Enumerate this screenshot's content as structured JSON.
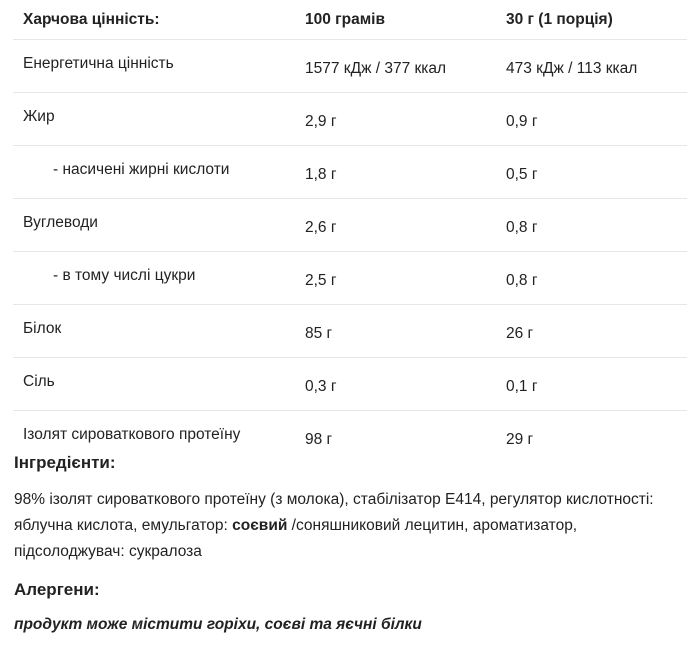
{
  "nutrition": {
    "headers": [
      "Харчова цінність:",
      "100 грамів",
      "30 г (1 порція)"
    ],
    "rows": [
      {
        "label": "Енергетична цінність",
        "per100": "1577 кДж / 377 ккал",
        "perServing": "473 кДж / 113 ккал"
      },
      {
        "label": "Жир",
        "per100": "2,9 г",
        "perServing": "0,9 г"
      },
      {
        "label": "- насичені жирні кислоти",
        "per100": "1,8 г",
        "perServing": "0,5 г"
      },
      {
        "label": "Вуглеводи",
        "per100": "2,6 г",
        "perServing": "0,8 г"
      },
      {
        "label": "- в тому числі цукри",
        "per100": "2,5 г",
        "perServing": "0,8 г"
      },
      {
        "label": "Білок",
        "per100": "85 г",
        "perServing": "26 г"
      },
      {
        "label": "Сіль",
        "per100": "0,3 г",
        "perServing": "0,1 г"
      },
      {
        "label": "Ізолят сироваткового протеїну",
        "per100": "98 г",
        "perServing": "29 г"
      }
    ]
  },
  "ingredients": {
    "title": "Інгредієнти:",
    "text_before": "98% ізолят сироваткового протеїну (з молока), стабілізатор E414, регулятор кислотності: яблучна кислота, емульгатор: ",
    "text_bold": "соєвий",
    "text_after": " /соняшниковий лецитин, ароматизатор, підсолоджувач: сукралоза"
  },
  "allergens": {
    "title": "Алергени:",
    "text": "продукт може містити горіхи, соєві та яєчні білки"
  }
}
